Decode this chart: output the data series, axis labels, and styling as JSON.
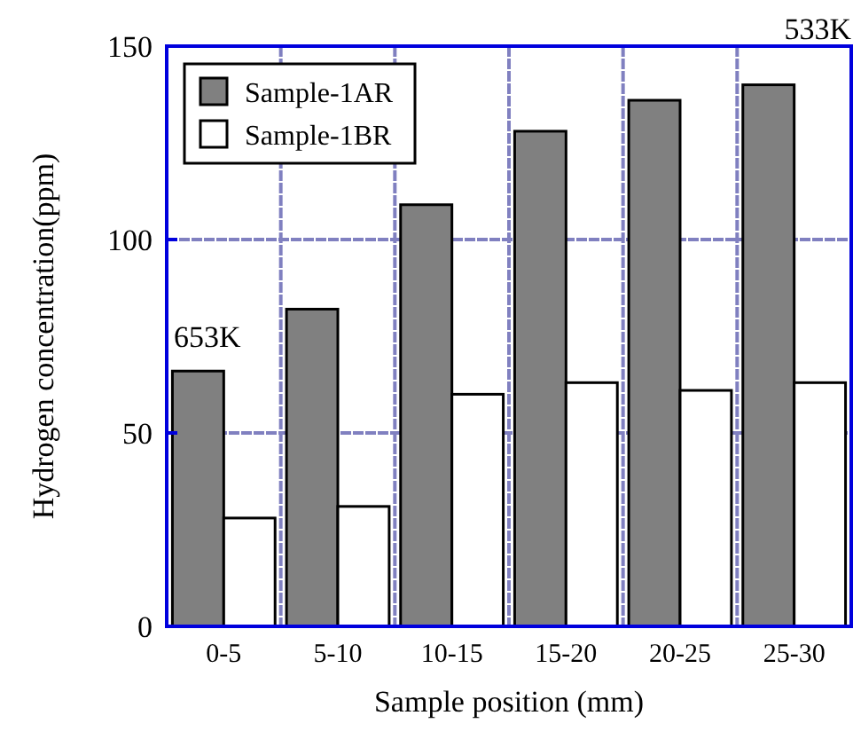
{
  "chart_data": {
    "type": "bar",
    "xlabel": "Sample position (mm)",
    "ylabel": "Hydrogen concentration(ppm)",
    "categories": [
      "0-5",
      "5-10",
      "10-15",
      "15-20",
      "20-25",
      "25-30"
    ],
    "series": [
      {
        "name": "Sample-1AR",
        "color": "#808080",
        "values": [
          66,
          82,
          109,
          128,
          136,
          140
        ]
      },
      {
        "name": "Sample-1BR",
        "color": "#ffffff",
        "values": [
          28,
          31,
          60,
          63,
          61,
          63
        ]
      }
    ],
    "ylim": [
      0,
      150
    ],
    "yticks": [
      0,
      50,
      100,
      150
    ],
    "grid": true,
    "legend": "top left",
    "annotations": [
      "653K",
      "533K"
    ]
  }
}
